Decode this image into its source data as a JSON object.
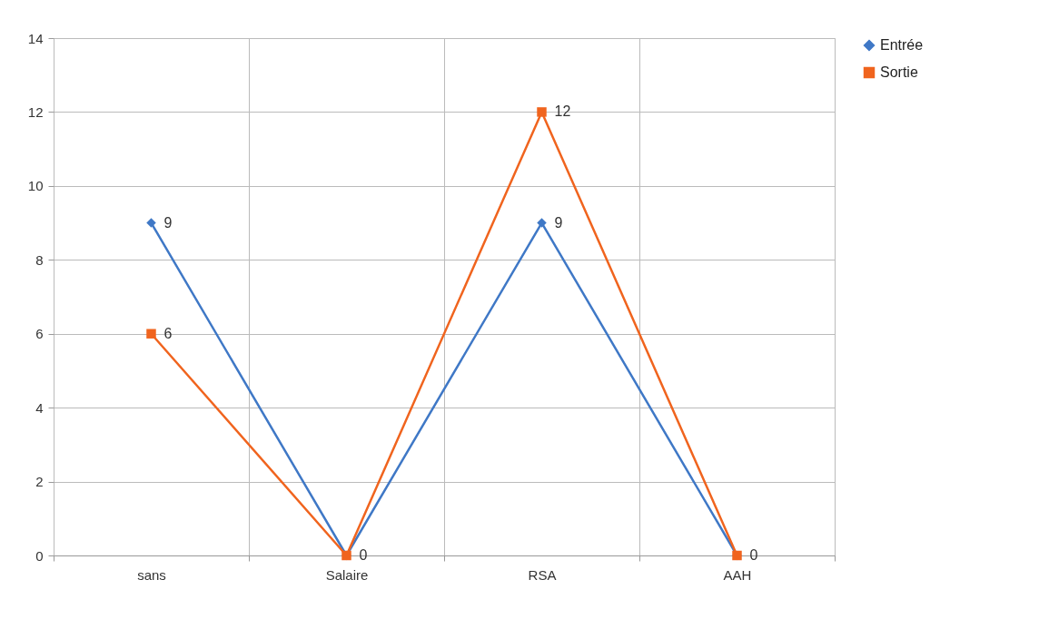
{
  "chart_data": {
    "type": "line",
    "categories": [
      "sans",
      "Salaire",
      "RSA",
      "AAH"
    ],
    "ylim": [
      0,
      14
    ],
    "yticks": [
      0,
      2,
      4,
      6,
      8,
      10,
      12,
      14
    ],
    "grid": true,
    "legend": "right",
    "series": [
      {
        "name": "Entrée",
        "color": "#3f78c6",
        "marker": "diamond",
        "values": [
          9,
          0,
          9,
          0
        ],
        "value_labels": [
          "9",
          null,
          "9",
          null
        ]
      },
      {
        "name": "Sortie",
        "color": "#f0641e",
        "marker": "square",
        "values": [
          6,
          0,
          12,
          0
        ],
        "value_labels": [
          "6",
          "0",
          "12",
          "0"
        ]
      }
    ]
  }
}
